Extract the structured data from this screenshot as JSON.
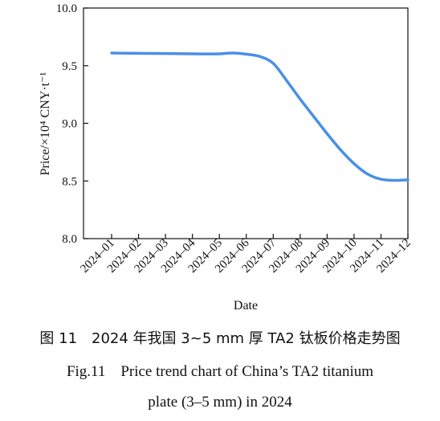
{
  "chart_data": {
    "type": "line",
    "xlabel": "Date",
    "ylabel": "Price/×10⁴ CNY·t⁻¹",
    "ylim": [
      8.0,
      10.0
    ],
    "yticks": [
      "8.0",
      "8.5",
      "9.0",
      "9.5",
      "10.0"
    ],
    "categories": [
      "2024–01",
      "2024–02",
      "2024–03",
      "2024–04",
      "2024–05",
      "2024–06",
      "2024–07",
      "2024–08",
      "2024–09",
      "2024–10",
      "2024–11",
      "2024–12"
    ],
    "series": [
      {
        "color": "#4a8fe7",
        "x": [
          1,
          2,
          3,
          4,
          4.5,
          5,
          5.5,
          6,
          6.5,
          7,
          7.5,
          8,
          8.5,
          9,
          9.5,
          10,
          10.5,
          11,
          11.5,
          12
        ],
        "values": [
          9.61,
          9.607,
          9.605,
          9.603,
          9.602,
          9.603,
          9.61,
          9.6,
          9.58,
          9.52,
          9.37,
          9.21,
          9.06,
          8.91,
          8.77,
          8.65,
          8.56,
          8.515,
          8.505,
          8.51
        ]
      }
    ],
    "grid": false
  },
  "captions": {
    "cn": "图 11　2024 年我国 3~5 mm 厚 TA2 钛板价格走势图",
    "en_line1": "Fig.11    Price trend chart of China’s TA2 titanium",
    "en_line2": "plate (3–5 mm) in 2024"
  }
}
